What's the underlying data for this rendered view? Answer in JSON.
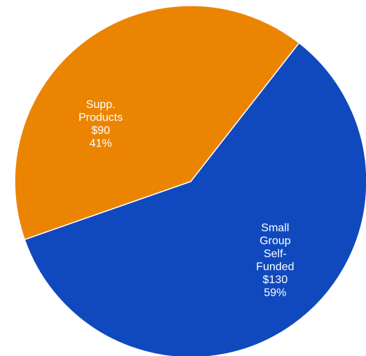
{
  "chart_data": {
    "type": "pie",
    "currency_unit": "$",
    "slices": [
      {
        "label_lines": [
          "Small",
          "Group",
          "Self-",
          "Funded"
        ],
        "value": 130,
        "value_text": "$130",
        "percent": 59,
        "percent_text": "59%",
        "color": "#1049BE"
      },
      {
        "label_lines": [
          "Supp.",
          "Products"
        ],
        "value": 90,
        "value_text": "$90",
        "percent": 41,
        "percent_text": "41%",
        "color": "#EB8400"
      }
    ]
  },
  "colors": {
    "background": "#ffffff",
    "label_text": "#ffffff",
    "slice_border": "#ffffff"
  }
}
